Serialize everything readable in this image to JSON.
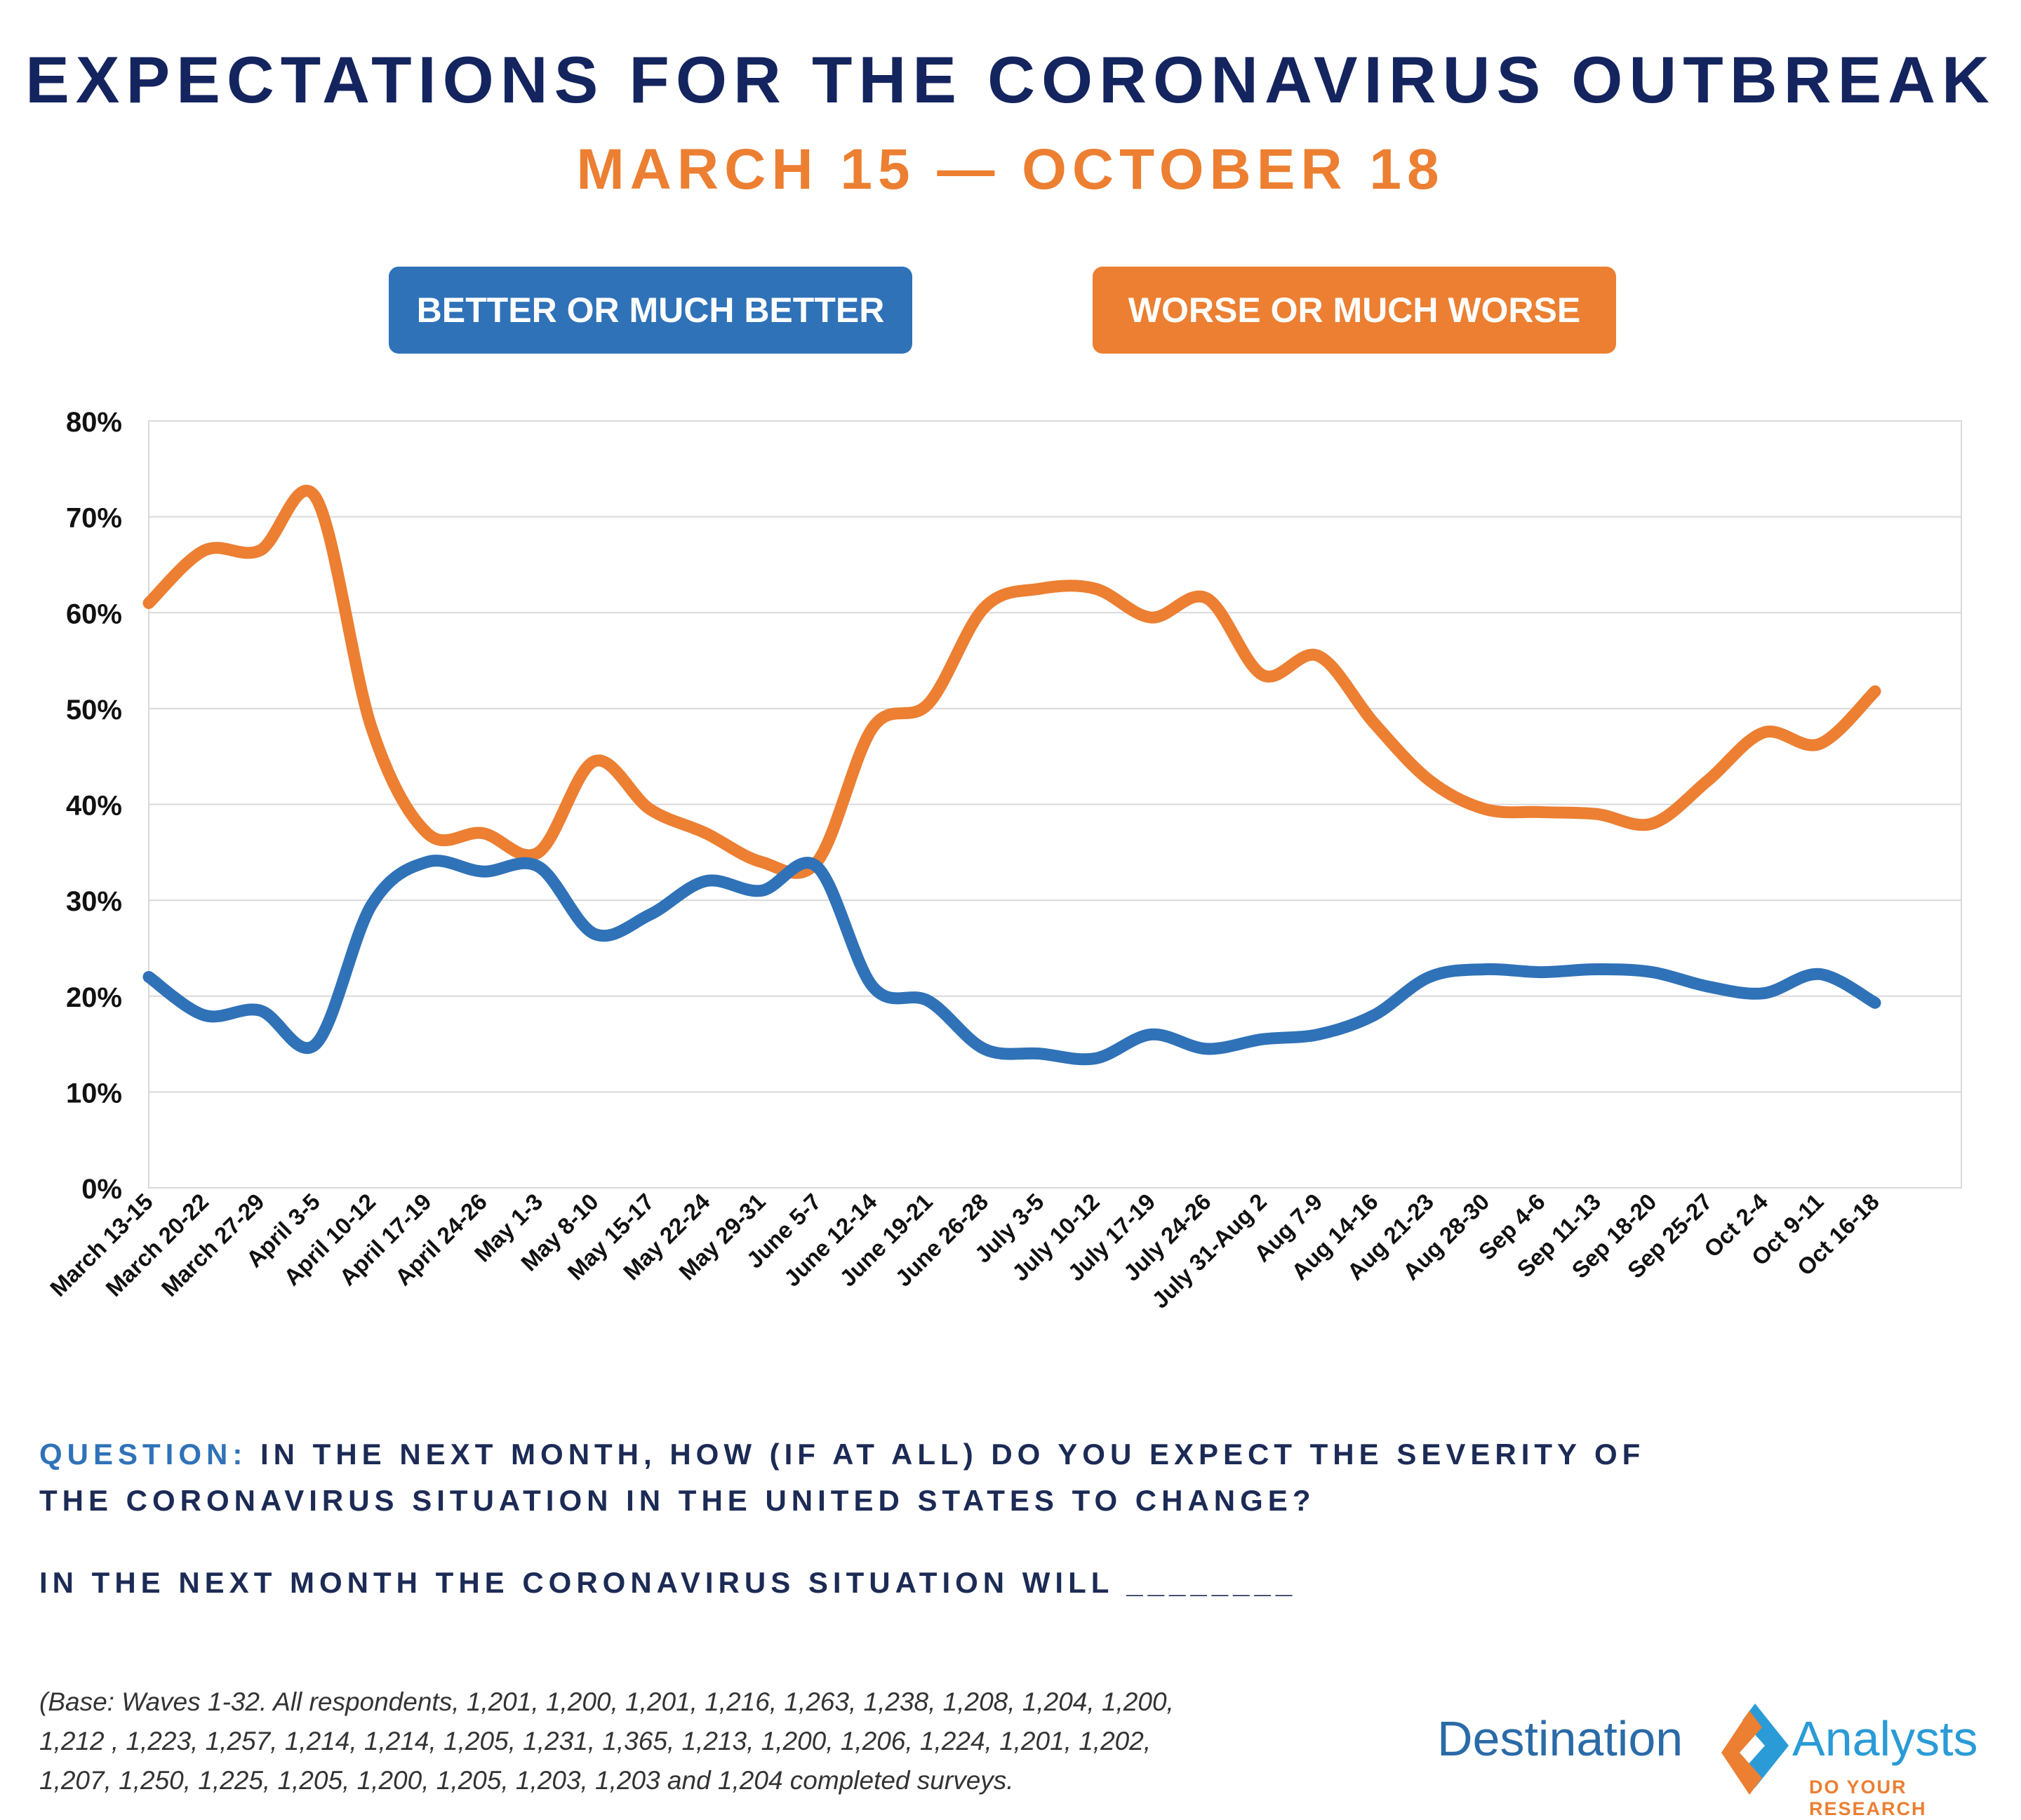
{
  "header": {
    "title": "EXPECTATIONS FOR THE CORONAVIRUS OUTBREAK",
    "subtitle": "MARCH 15 — OCTOBER 18"
  },
  "legend": {
    "better": "BETTER OR MUCH BETTER",
    "worse": "WORSE OR MUCH WORSE"
  },
  "colors": {
    "better": "#2f72b8",
    "worse": "#ec7f32",
    "title": "#14245e",
    "grid": "#d9d9d9"
  },
  "chart_data": {
    "type": "line",
    "categories": [
      "March 13-15",
      "March 20-22",
      "March 27-29",
      "April 3-5",
      "April 10-12",
      "April 17-19",
      "April 24-26",
      "May 1-3",
      "May 8-10",
      "May 15-17",
      "May 22-24",
      "May 29-31",
      "June 5-7",
      "June 12-14",
      "June 19-21",
      "June 26-28",
      "July 3-5",
      "July 10-12",
      "July 17-19",
      "July 24-26",
      "July 31-Aug 2",
      "Aug 7-9",
      "Aug 14-16",
      "Aug 21-23",
      "Aug 28-30",
      "Sep 4-6",
      "Sep 11-13",
      "Sep 18-20",
      "Sep 25-27",
      "Oct 2-4",
      "Oct 9-11",
      "Oct 16-18"
    ],
    "series": [
      {
        "name": "BETTER OR MUCH BETTER",
        "color": "#2f72b8",
        "values": [
          22,
          18,
          18.5,
          15,
          29.5,
          34,
          33,
          33.5,
          26.5,
          28.5,
          32,
          31,
          33.5,
          21,
          19.5,
          14.5,
          14,
          13.5,
          16,
          14.5,
          15.5,
          16,
          18,
          22,
          22.8,
          22.5,
          22.8,
          22.5,
          21,
          20.3,
          22.3,
          19.3
        ]
      },
      {
        "name": "WORSE OR MUCH WORSE",
        "color": "#ec7f32",
        "values": [
          61,
          66.5,
          66.5,
          72,
          48,
          37,
          37,
          35,
          44.5,
          39.5,
          37,
          34,
          34,
          48,
          50.5,
          60.5,
          62.5,
          62.5,
          59.5,
          61.5,
          53.5,
          55.5,
          48.5,
          42.5,
          39.5,
          39.2,
          39,
          38,
          42.5,
          47.5,
          46.3,
          51.8
        ]
      }
    ],
    "yticks": [
      "0%",
      "10%",
      "20%",
      "30%",
      "40%",
      "50%",
      "60%",
      "70%",
      "80%"
    ],
    "ylim": [
      0,
      80
    ],
    "grid": true
  },
  "footer": {
    "question_label": "QUESTION:",
    "question_line1": " IN THE NEXT MONTH, HOW (IF AT ALL) DO YOU EXPECT THE SEVERITY OF",
    "question_line2": "THE CORONAVIRUS SITUATION IN THE UNITED STATES TO CHANGE?",
    "prompt": "IN THE NEXT MONTH THE CORONAVIRUS SITUATION WILL ________",
    "base_line1": "(Base: Waves 1-32.  All respondents, 1,201, 1,200, 1,201, 1,216, 1,263, 1,238, 1,208, 1,204, 1,200,",
    "base_line2": "1,212 , 1,223, 1,257, 1,214, 1,214, 1,205, 1,231, 1,365, 1,213, 1,200, 1,206, 1,224, 1,201, 1,202,",
    "base_line3": "1,207, 1,250, 1,225, 1,205, 1,200, 1,205, 1,203, 1,203 and 1,204 completed surveys."
  },
  "logo": {
    "word1": "Destination",
    "word2": "Analysts",
    "tagline": "DO YOUR RESEARCH"
  }
}
